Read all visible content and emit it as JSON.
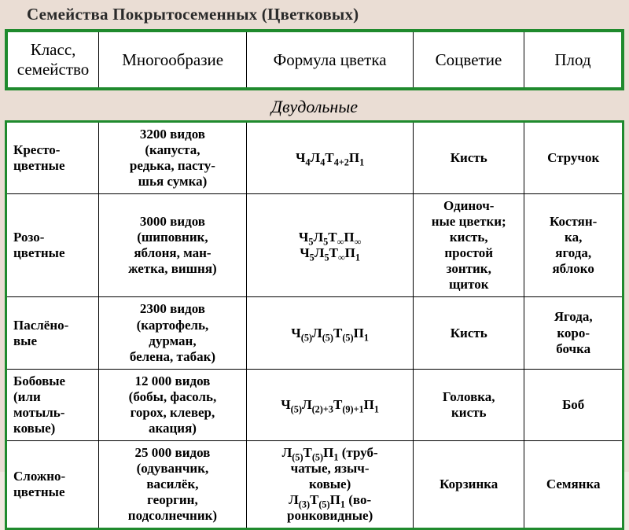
{
  "title": "Семейства Покрытосеменных (Цветковых)",
  "subtitle": "Двудольные",
  "colors": {
    "border_green": "#1f8a2d",
    "page_bg": "#eaddd4"
  },
  "columns": [
    {
      "label": "Класс,\nсемейство"
    },
    {
      "label": "Многообразие"
    },
    {
      "label": "Формула цветка"
    },
    {
      "label": "Соцветие"
    },
    {
      "label": "Плод"
    }
  ],
  "rows": [
    {
      "family": "Кресто-\nцветные",
      "diversity": "3200 видов\n(капуста,\nредька, пасту-\nшья сумка)",
      "formula_html": "Ч<sub>4</sub>Л<sub>4</sub>Т<sub>4+2</sub>П<sub>1</sub>",
      "inflorescence": "Кисть",
      "fruit": "Стручок"
    },
    {
      "family": "Розо-\nцветные",
      "diversity": "3000 видов\n(шиповник,\nяблоня, ман-\nжетка, вишня)",
      "formula_html": "Ч<sub>5</sub>Л<sub>5</sub>Т<sub>∞</sub>П<sub>∞</sub><br>Ч<sub>5</sub>Л<sub>5</sub>Т<sub>∞</sub>П<sub>1</sub>",
      "inflorescence": "Одиноч-\nные цветки;\nкисть,\nпростой\nзонтик,\nщиток",
      "fruit": "Костян-\nка,\nягода,\nяблоко"
    },
    {
      "family": "Паслёно-\nвые",
      "diversity": "2300 видов\n(картофель,\nдурман,\nбелена, табак)",
      "formula_html": "Ч<sub>(5)</sub>Л<sub>(5)</sub>Т<sub>(5)</sub>П<sub>1</sub>",
      "inflorescence": "Кисть",
      "fruit": "Ягода,\nкоро-\nбочка"
    },
    {
      "family": "Бобовые\n(или\nмотыль-\nковые)",
      "diversity": "12 000 видов\n(бобы, фасоль,\nгорох, клевер,\nакация)",
      "formula_html": "Ч<sub>(5)</sub>Л<sub>(2)+3</sub>Т<sub>(9)+1</sub>П<sub>1</sub>",
      "inflorescence": "Головка,\nкисть",
      "fruit": "Боб"
    },
    {
      "family": "Сложно-\nцветные",
      "diversity": "25 000 видов\n(одуванчик,\nвасилёк,\nгеоргин,\nподсолнечник)",
      "formula_html": "Л<sub>(5)</sub>Т<sub>(5)</sub>П<sub>1</sub> (труб-\nчатые, языч-\nковые)<br>Л<sub>(3)</sub>Т<sub>(5)</sub>П<sub>1</sub> (во-\nронковидные)",
      "inflorescence": "Корзинка",
      "fruit": "Семянка"
    }
  ]
}
